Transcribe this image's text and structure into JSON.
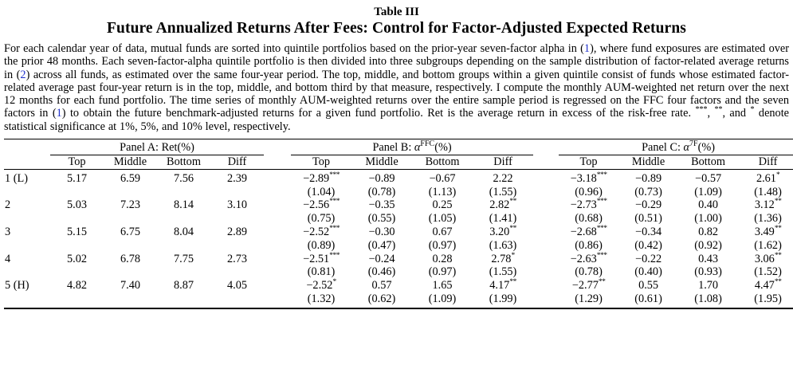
{
  "colors": {
    "link_blue": "#2233cc",
    "text": "#000000",
    "background": "#ffffff"
  },
  "header": {
    "table_number": "Table III",
    "table_title": "Future Annualized Returns After Fees: Control for Factor-Adjusted Expected Returns"
  },
  "description": {
    "segments": [
      {
        "type": "text",
        "value": "For each calendar year of data, mutual funds are sorted into quintile portfolios based on the prior-year seven-factor alpha in ("
      },
      {
        "type": "link",
        "value": "1"
      },
      {
        "type": "text",
        "value": "), where fund exposures are estimated over the prior 48 months. Each seven-factor-alpha quintile portfolio is then divided into three subgroups depending on the sample distribution of factor-related average returns in ("
      },
      {
        "type": "link",
        "value": "2"
      },
      {
        "type": "text",
        "value": ") across all funds, as estimated over the same four-year period. The top, middle, and bottom groups within a given quintile consist of funds whose estimated factor-related average past four-year return is in the top, middle, and bottom third by that measure, respectively. I compute the monthly AUM-weighted net return over the next 12 months for each fund portfolio. The time series of monthly AUM-weighted returns over the entire sample period is regressed on the FFC four factors and the seven factors in ("
      },
      {
        "type": "link",
        "value": "1"
      },
      {
        "type": "text",
        "value": ") to obtain the future benchmark-adjusted returns for a given fund portfolio. Ret is the average return in excess of the risk-free rate. "
      },
      {
        "type": "sup",
        "value": "***"
      },
      {
        "type": "text",
        "value": ", "
      },
      {
        "type": "sup",
        "value": "**"
      },
      {
        "type": "text",
        "value": ", and "
      },
      {
        "type": "sup",
        "value": "*"
      },
      {
        "type": "text",
        "value": " denote statistical significance at 1%, 5%, and 10% level, respectively."
      }
    ]
  },
  "table": {
    "panels": [
      {
        "prefix": "Panel A: ",
        "symbol": "Ret",
        "sup": "",
        "suffix": "(%)"
      },
      {
        "prefix": "Panel B: ",
        "symbol": "α",
        "sup": "FFC",
        "suffix": "(%)"
      },
      {
        "prefix": "Panel C: ",
        "symbol": "α",
        "sup": "7F",
        "suffix": "(%)"
      }
    ],
    "col_headers": [
      "Top",
      "Middle",
      "Bottom",
      "Diff"
    ],
    "rows": [
      {
        "label": "1 (L)",
        "panelA": [
          "5.17",
          "6.59",
          "7.56",
          "2.39"
        ],
        "panelB": {
          "est": [
            "−2.89",
            "−0.89",
            "−0.67",
            "2.22"
          ],
          "stars": [
            "***",
            "",
            "",
            ""
          ],
          "se": [
            "(1.04)",
            "(0.78)",
            "(1.13)",
            "(1.55)"
          ]
        },
        "panelC": {
          "est": [
            "−3.18",
            "−0.89",
            "−0.57",
            "2.61"
          ],
          "stars": [
            "***",
            "",
            "",
            "*"
          ],
          "se": [
            "(0.96)",
            "(0.73)",
            "(1.09)",
            "(1.48)"
          ]
        }
      },
      {
        "label": "2",
        "panelA": [
          "5.03",
          "7.23",
          "8.14",
          "3.10"
        ],
        "panelB": {
          "est": [
            "−2.56",
            "−0.35",
            "0.25",
            "2.82"
          ],
          "stars": [
            "***",
            "",
            "",
            "**"
          ],
          "se": [
            "(0.75)",
            "(0.55)",
            "(1.05)",
            "(1.41)"
          ]
        },
        "panelC": {
          "est": [
            "−2.73",
            "−0.29",
            "0.40",
            "3.12"
          ],
          "stars": [
            "***",
            "",
            "",
            "**"
          ],
          "se": [
            "(0.68)",
            "(0.51)",
            "(1.00)",
            "(1.36)"
          ]
        }
      },
      {
        "label": "3",
        "panelA": [
          "5.15",
          "6.75",
          "8.04",
          "2.89"
        ],
        "panelB": {
          "est": [
            "−2.52",
            "−0.30",
            "0.67",
            "3.20"
          ],
          "stars": [
            "***",
            "",
            "",
            "**"
          ],
          "se": [
            "(0.89)",
            "(0.47)",
            "(0.97)",
            "(1.63)"
          ]
        },
        "panelC": {
          "est": [
            "−2.68",
            "−0.34",
            "0.82",
            "3.49"
          ],
          "stars": [
            "***",
            "",
            "",
            "**"
          ],
          "se": [
            "(0.86)",
            "(0.42)",
            "(0.92)",
            "(1.62)"
          ]
        }
      },
      {
        "label": "4",
        "panelA": [
          "5.02",
          "6.78",
          "7.75",
          "2.73"
        ],
        "panelB": {
          "est": [
            "−2.51",
            "−0.24",
            "0.28",
            "2.78"
          ],
          "stars": [
            "***",
            "",
            "",
            "*"
          ],
          "se": [
            "(0.81)",
            "(0.46)",
            "(0.97)",
            "(1.55)"
          ]
        },
        "panelC": {
          "est": [
            "−2.63",
            "−0.22",
            "0.43",
            "3.06"
          ],
          "stars": [
            "***",
            "",
            "",
            "**"
          ],
          "se": [
            "(0.78)",
            "(0.40)",
            "(0.93)",
            "(1.52)"
          ]
        }
      },
      {
        "label": "5 (H)",
        "panelA": [
          "4.82",
          "7.40",
          "8.87",
          "4.05"
        ],
        "panelB": {
          "est": [
            "−2.52",
            "0.57",
            "1.65",
            "4.17"
          ],
          "stars": [
            "*",
            "",
            "",
            "**"
          ],
          "se": [
            "(1.32)",
            "(0.62)",
            "(1.09)",
            "(1.99)"
          ]
        },
        "panelC": {
          "est": [
            "−2.77",
            "0.55",
            "1.70",
            "4.47"
          ],
          "stars": [
            "**",
            "",
            "",
            "**"
          ],
          "se": [
            "(1.29)",
            "(0.61)",
            "(1.08)",
            "(1.95)"
          ]
        }
      }
    ]
  }
}
